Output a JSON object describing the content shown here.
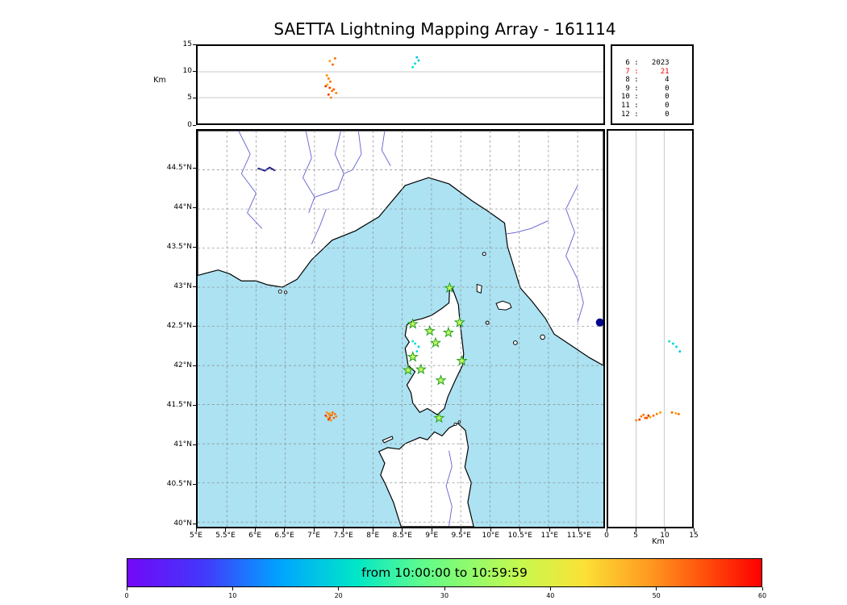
{
  "title": "SAETTA Lightning Mapping Array - 161114",
  "colors": {
    "sea": "#ace2f2",
    "land": "#ffffff",
    "coast": "#000000",
    "river": "#5f5fd0",
    "lake": "#22228a",
    "grid": "#8a8a8a",
    "panel_grid": "#b8b8b8",
    "star_fill": "#c6f860",
    "star_edge": "#1fa01f"
  },
  "top_panel": {
    "ylabel": "Km",
    "yticks": [
      0,
      5,
      10,
      15
    ],
    "ymax": 15
  },
  "stats": {
    "rows": [
      {
        "hour": "6",
        "count": "2023",
        "color": "#000000"
      },
      {
        "hour": "7",
        "count": "21",
        "color": "#ff0000"
      },
      {
        "hour": "8",
        "count": "4",
        "color": "#000000"
      },
      {
        "hour": "9",
        "count": "0",
        "color": "#000000"
      },
      {
        "hour": "10",
        "count": "0",
        "color": "#000000"
      },
      {
        "hour": "11",
        "count": "0",
        "color": "#000000"
      },
      {
        "hour": "12",
        "count": "0",
        "color": "#000000"
      }
    ]
  },
  "map": {
    "lon_min": 5,
    "lon_max": 11.94,
    "lat_min": 39.94,
    "lat_max": 45,
    "lon_ticks": [
      {
        "v": 5,
        "label": "5°E"
      },
      {
        "v": 5.5,
        "label": "5.5°E"
      },
      {
        "v": 6,
        "label": "6°E"
      },
      {
        "v": 6.5,
        "label": "6.5°E"
      },
      {
        "v": 7,
        "label": "7°E"
      },
      {
        "v": 7.5,
        "label": "7.5°E"
      },
      {
        "v": 8,
        "label": "8°E"
      },
      {
        "v": 8.5,
        "label": "8.5°E"
      },
      {
        "v": 9,
        "label": "9°E"
      },
      {
        "v": 9.5,
        "label": "9.5°E"
      },
      {
        "v": 10,
        "label": "10°E"
      },
      {
        "v": 10.5,
        "label": "10.5°E"
      },
      {
        "v": 11,
        "label": "11°E"
      },
      {
        "v": 11.5,
        "label": "11.5°E"
      }
    ],
    "lat_ticks": [
      {
        "v": 40,
        "label": "40°N"
      },
      {
        "v": 40.5,
        "label": "40.5°N"
      },
      {
        "v": 41,
        "label": "41°N"
      },
      {
        "v": 41.5,
        "label": "41.5°N"
      },
      {
        "v": 42,
        "label": "42°N"
      },
      {
        "v": 42.5,
        "label": "42.5°N"
      },
      {
        "v": 43,
        "label": "43°N"
      },
      {
        "v": 43.5,
        "label": "43.5°N"
      },
      {
        "v": 44,
        "label": "44°N"
      },
      {
        "v": 44.5,
        "label": "44.5°N"
      }
    ]
  },
  "right_panel": {
    "xlabel": "Km",
    "xticks": [
      0,
      5,
      10,
      15
    ],
    "xmax": 15
  },
  "colorbar": {
    "label": "from 10:00:00 to 10:59:59",
    "ticks": [
      0,
      10,
      20,
      30,
      40,
      50,
      60
    ],
    "min": 0,
    "max": 60
  },
  "chart_data": {
    "type": "scatter",
    "title": "SAETTA Lightning Mapping Array - 161114",
    "time_window": "from 10:00:00 to 10:59:59",
    "color_scale_minutes": {
      "min": 0,
      "max": 60
    },
    "hour_counts": {
      "6": 2023,
      "7": 21,
      "8": 4,
      "9": 0,
      "10": 0,
      "11": 0,
      "12": 0
    },
    "panels": {
      "top": {
        "x": "longitude_deg_E",
        "y": "altitude_km",
        "ylim": [
          0,
          15
        ]
      },
      "map": {
        "x": "longitude_deg_E",
        "xlim": [
          5,
          11.94
        ],
        "y": "latitude_deg_N",
        "ylim": [
          39.94,
          45
        ]
      },
      "right": {
        "x": "altitude_km",
        "xlim": [
          0,
          15
        ],
        "y": "latitude_deg_N"
      }
    },
    "stations_lon_lat": [
      [
        9.31,
        42.99
      ],
      [
        8.68,
        42.53
      ],
      [
        8.97,
        42.44
      ],
      [
        9.29,
        42.42
      ],
      [
        9.48,
        42.55
      ],
      [
        9.07,
        42.29
      ],
      [
        8.68,
        42.11
      ],
      [
        9.52,
        42.06
      ],
      [
        8.6,
        41.94
      ],
      [
        8.82,
        41.95
      ],
      [
        9.16,
        41.81
      ],
      [
        9.13,
        41.33
      ]
    ],
    "points": [
      {
        "lon": 7.21,
        "lat": 41.4,
        "alt_km": 9.3,
        "minute": 47,
        "color": "#ff9500"
      },
      {
        "lon": 7.24,
        "lat": 41.38,
        "alt_km": 8.7,
        "minute": 48,
        "color": "#ff7f00"
      },
      {
        "lon": 7.27,
        "lat": 41.36,
        "alt_km": 8.1,
        "minute": 50,
        "color": "#ff6a00"
      },
      {
        "lon": 7.22,
        "lat": 41.34,
        "alt_km": 7.5,
        "minute": 46,
        "color": "#ffa500"
      },
      {
        "lon": 7.26,
        "lat": 41.33,
        "alt_km": 6.9,
        "minute": 52,
        "color": "#ff4500"
      },
      {
        "lon": 7.3,
        "lat": 41.37,
        "alt_km": 6.3,
        "minute": 49,
        "color": "#ff7300"
      },
      {
        "lon": 7.24,
        "lat": 41.31,
        "alt_km": 5.6,
        "minute": 53,
        "color": "#f43b00"
      },
      {
        "lon": 7.28,
        "lat": 41.3,
        "alt_km": 5.0,
        "minute": 47,
        "color": "#ff8c00"
      },
      {
        "lon": 7.33,
        "lat": 41.33,
        "alt_km": 6.6,
        "minute": 51,
        "color": "#ff5e00"
      },
      {
        "lon": 7.37,
        "lat": 41.35,
        "alt_km": 5.9,
        "minute": 48,
        "color": "#ff7f00"
      },
      {
        "lon": 7.26,
        "lat": 41.39,
        "alt_km": 12.1,
        "minute": 46,
        "color": "#ffa000"
      },
      {
        "lon": 7.19,
        "lat": 41.36,
        "alt_km": 7.2,
        "minute": 54,
        "color": "#e83000"
      },
      {
        "lon": 7.31,
        "lat": 41.4,
        "alt_km": 11.4,
        "minute": 50,
        "color": "#ff6a00"
      },
      {
        "lon": 7.35,
        "lat": 41.38,
        "alt_km": 12.6,
        "minute": 49,
        "color": "#ff7300"
      },
      {
        "lon": 8.72,
        "lat": 42.28,
        "alt_km": 11.6,
        "minute": 20,
        "color": "#00d9d9"
      },
      {
        "lon": 8.78,
        "lat": 42.24,
        "alt_km": 12.2,
        "minute": 21,
        "color": "#00cfe0"
      },
      {
        "lon": 8.68,
        "lat": 42.31,
        "alt_km": 10.9,
        "minute": 19,
        "color": "#10e0cc"
      },
      {
        "lon": 8.75,
        "lat": 42.18,
        "alt_km": 12.8,
        "minute": 22,
        "color": "#00c8e8"
      }
    ],
    "large_marker": {
      "lon": 11.88,
      "lat": 42.55,
      "minute": 1,
      "color": "#00008b"
    }
  }
}
